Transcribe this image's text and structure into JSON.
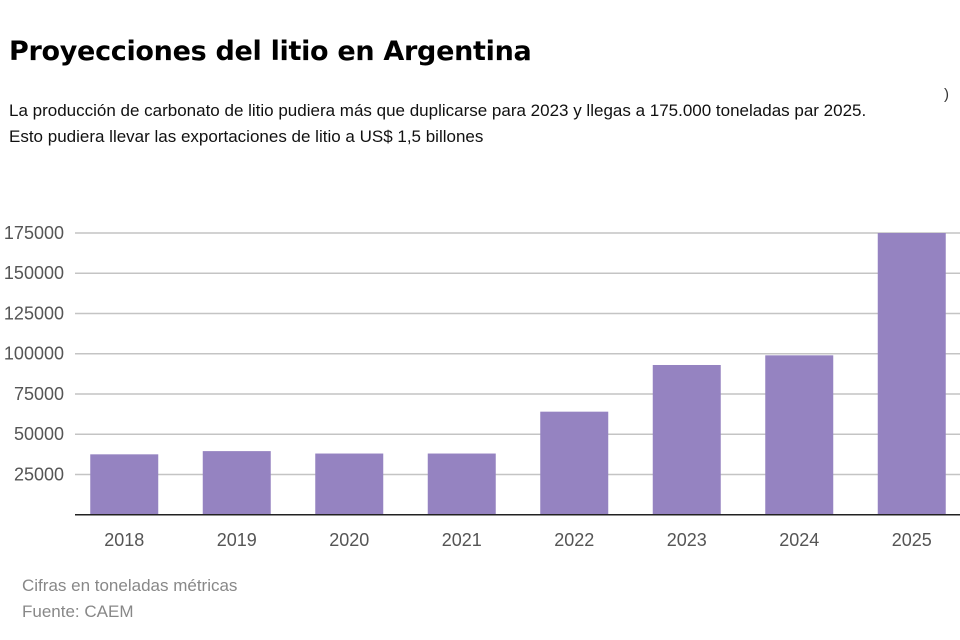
{
  "chart_data": {
    "type": "bar",
    "title": "Proyecciones del litio en Argentina",
    "subtitle": "La producción de carbonato de litio pudiera más que duplicarse para 2023 y llegas a 175.000 toneladas par 2025. Esto pudiera llevar las exportaciones de litio a US$ 1,5 billones",
    "categories": [
      "2018",
      "2019",
      "2020",
      "2021",
      "2022",
      "2023",
      "2024",
      "2025"
    ],
    "values": [
      37500,
      39500,
      38000,
      38000,
      64000,
      93000,
      99000,
      175000
    ],
    "yticks": [
      "25000",
      "50000",
      "75000",
      "100000",
      "125000",
      "150000",
      "175000"
    ],
    "ylim": [
      0,
      175000
    ],
    "grid": true,
    "bar_color": "#9583c1",
    "notes": [
      "Cifras en toneladas métricas",
      "Fuente: CAEM"
    ],
    "stray_mark": ")"
  }
}
